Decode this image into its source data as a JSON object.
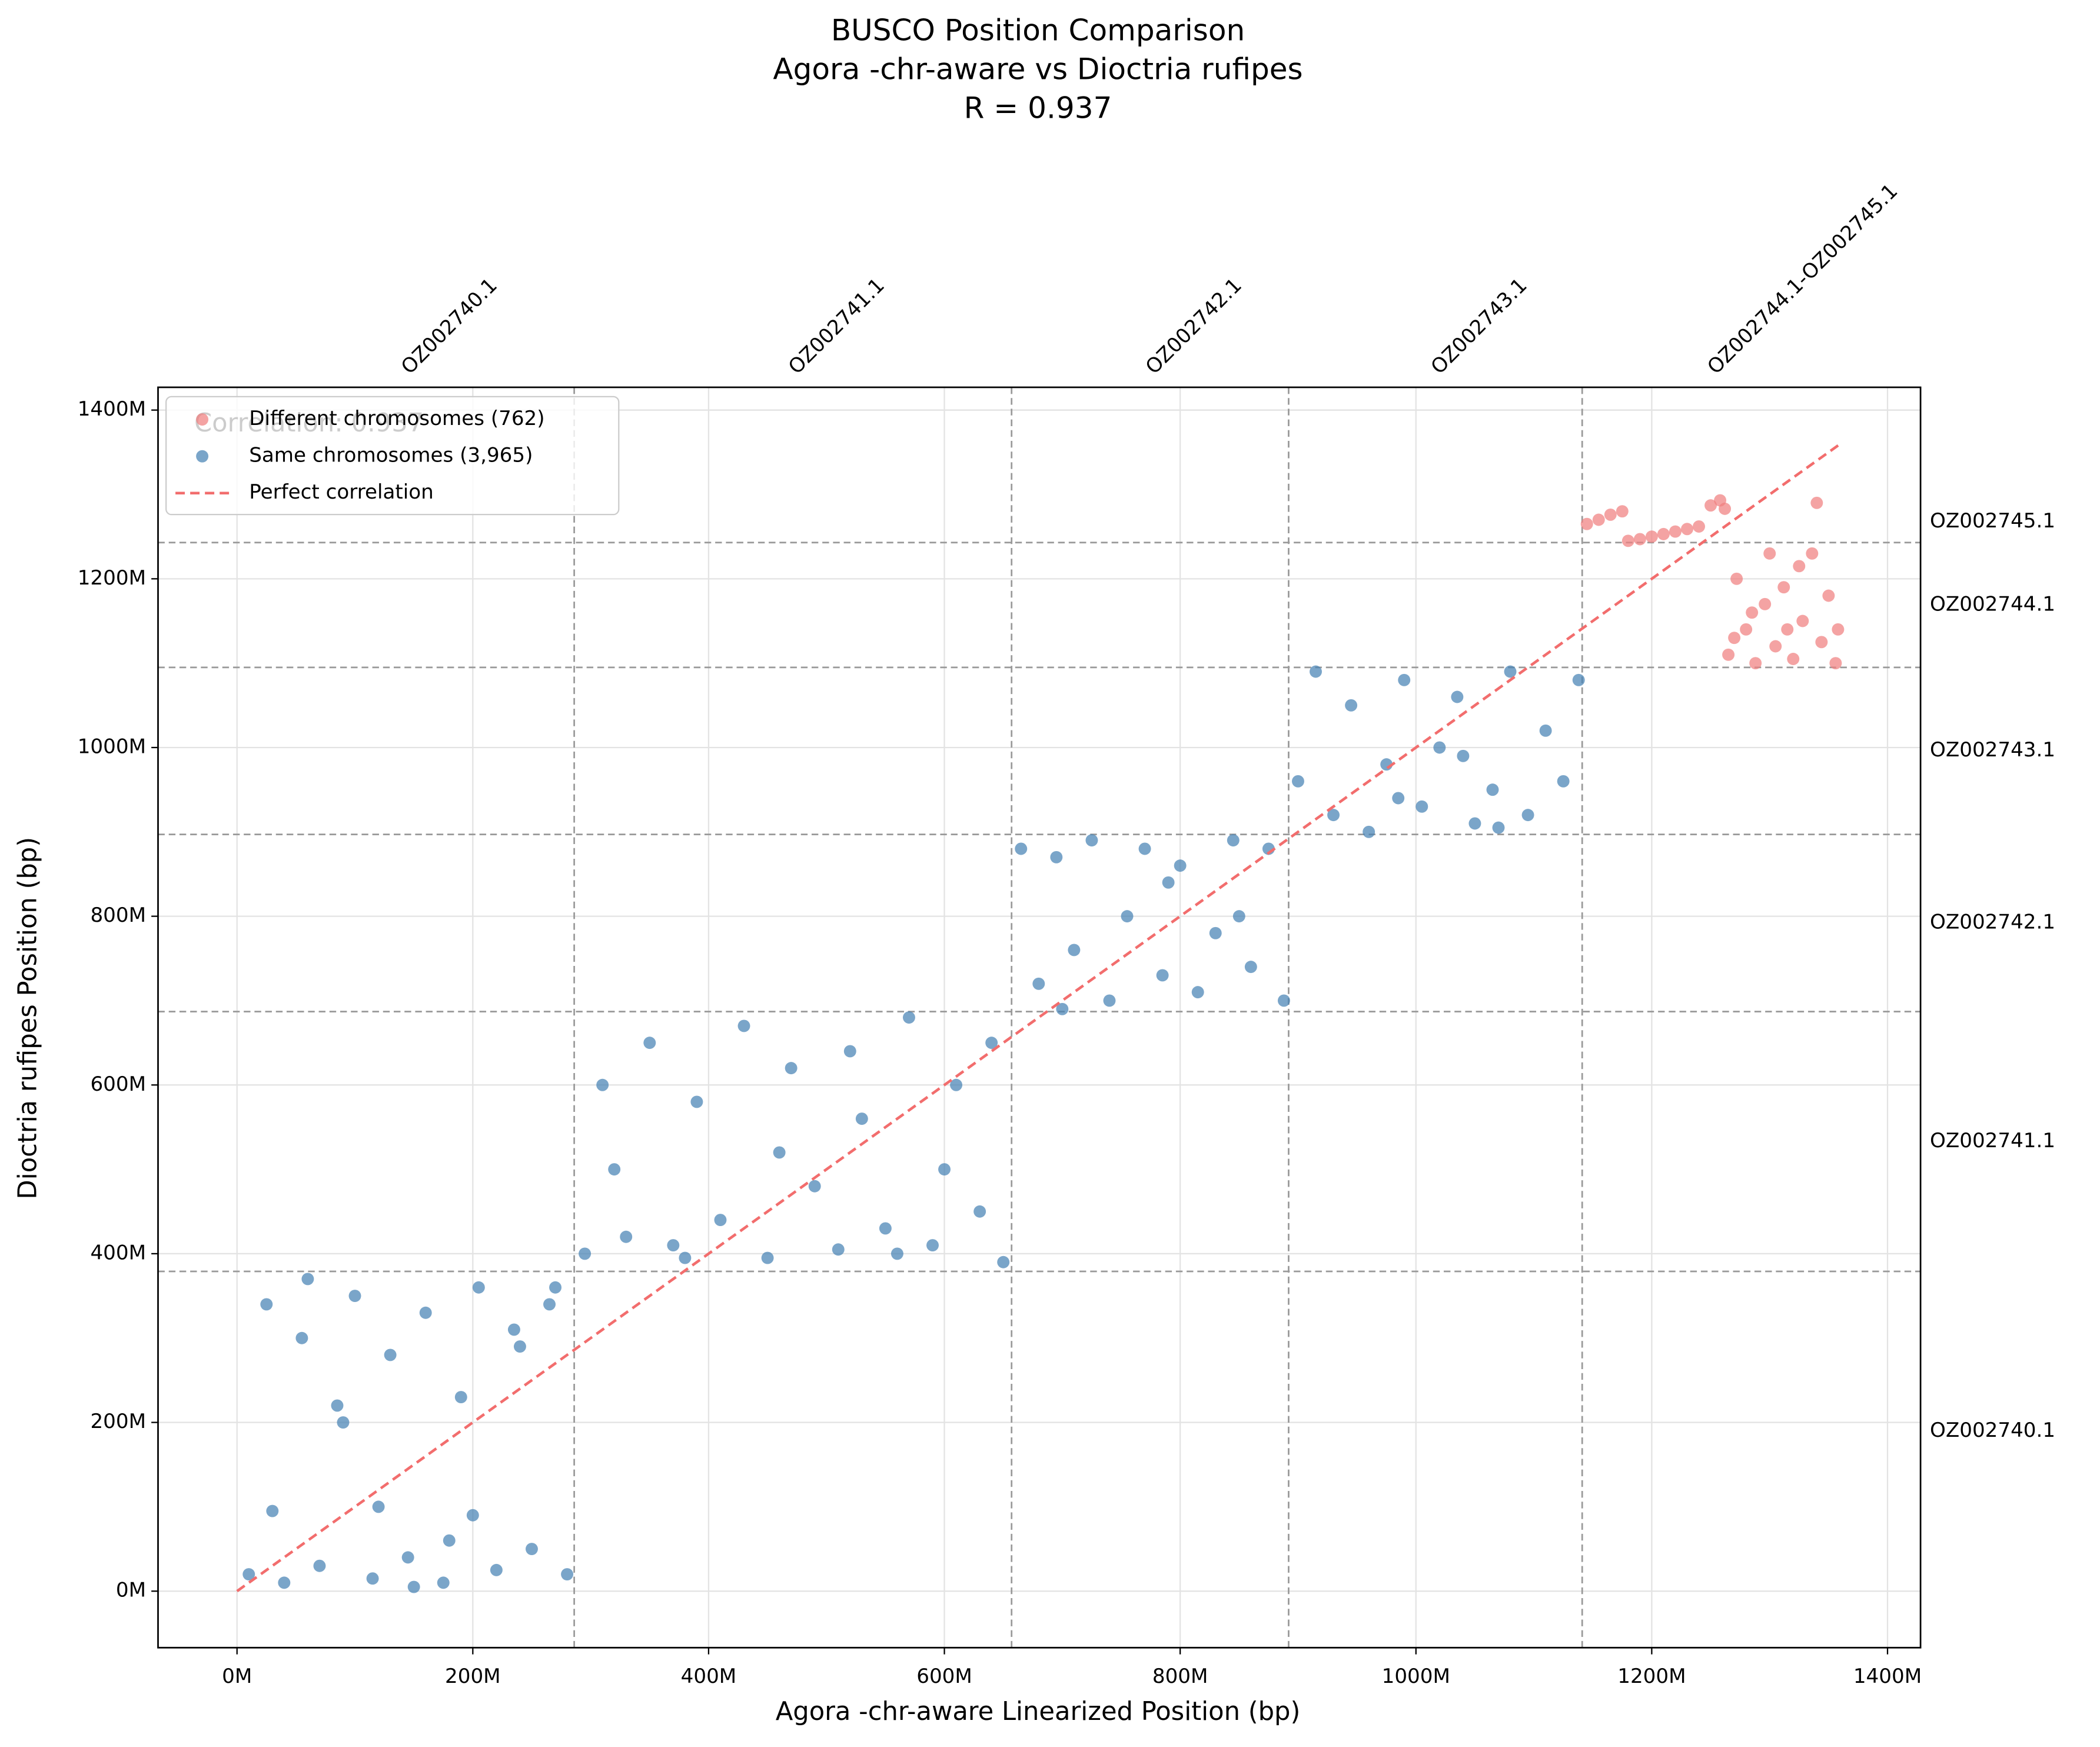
{
  "chart_data": {
    "type": "scatter",
    "title": [
      "BUSCO Position Comparison",
      "Agora -chr-aware  vs Dioctria rufipes",
      "R = 0.937"
    ],
    "x_label": "Agora -chr-aware  Linearized Position (bp)",
    "y_label": "Dioctria rufipes Position (bp)",
    "annotation": "Correlation: 0.937",
    "xlim": [
      -67000000.0,
      1428000000.0
    ],
    "ylim": [
      -67000000.0,
      1427000000.0
    ],
    "xticks": [
      {
        "value": 0,
        "label": "0M"
      },
      {
        "value": 200000000.0,
        "label": "200M"
      },
      {
        "value": 400000000.0,
        "label": "400M"
      },
      {
        "value": 600000000.0,
        "label": "600M"
      },
      {
        "value": 800000000.0,
        "label": "800M"
      },
      {
        "value": 1000000000.0,
        "label": "1000M"
      },
      {
        "value": 1200000000.0,
        "label": "1200M"
      },
      {
        "value": 1400000000.0,
        "label": "1400M"
      }
    ],
    "yticks": [
      {
        "value": 0,
        "label": "0M"
      },
      {
        "value": 200000000.0,
        "label": "200M"
      },
      {
        "value": 400000000.0,
        "label": "400M"
      },
      {
        "value": 600000000.0,
        "label": "600M"
      },
      {
        "value": 800000000.0,
        "label": "800M"
      },
      {
        "value": 1000000000.0,
        "label": "1000M"
      },
      {
        "value": 1200000000.0,
        "label": "1200M"
      },
      {
        "value": 1400000000.0,
        "label": "1400M"
      }
    ],
    "grid": true,
    "legend": "upper left",
    "x_chrom_edges": [
      0,
      286000000.0,
      657000000.0,
      892000000.0,
      1141000000.0,
      1361000000.0
    ],
    "x_chrom_labels": [
      "OZ002740.1",
      "OZ002741.1",
      "OZ002742.1",
      "OZ002743.1",
      "OZ002744.1-OZ002745.1"
    ],
    "y_chrom_edges": [
      0,
      379000000.0,
      687000000.0,
      897000000.0,
      1095000000.0,
      1243000000.0,
      1292000000.0
    ],
    "y_chrom_labels": [
      "OZ002740.1",
      "OZ002741.1",
      "OZ002742.1",
      "OZ002743.1",
      "OZ002744.1",
      "OZ002745.1"
    ],
    "series": [
      {
        "name": "Different chromosomes (762)",
        "color": "#f08080",
        "mode": "points",
        "x": [
          1145000000.0,
          1155000000.0,
          1165000000.0,
          1175000000.0,
          1180000000.0,
          1190000000.0,
          1200000000.0,
          1210000000.0,
          1220000000.0,
          1230000000.0,
          1240000000.0,
          1250000000.0,
          1258000000.0,
          1262000000.0,
          1265000000.0,
          1272000000.0,
          1280000000.0,
          1288000000.0,
          1296000000.0,
          1305000000.0,
          1312000000.0,
          1320000000.0,
          1328000000.0,
          1336000000.0,
          1344000000.0,
          1350000000.0,
          1356000000.0,
          1340000000.0,
          1300000000.0,
          1315000000.0,
          1285000000.0,
          1325000000.0,
          1358000000.0,
          1270000000.0
        ],
        "values": [
          1265000000.0,
          1270000000.0,
          1276000000.0,
          1280000000.0,
          1245000000.0,
          1247000000.0,
          1250000000.0,
          1253000000.0,
          1256000000.0,
          1259000000.0,
          1262000000.0,
          1287000000.0,
          1293000000.0,
          1283000000.0,
          1110000000.0,
          1200000000.0,
          1140000000.0,
          1100000000.0,
          1170000000.0,
          1120000000.0,
          1190000000.0,
          1105000000.0,
          1150000000.0,
          1230000000.0,
          1125000000.0,
          1180000000.0,
          1100000000.0,
          1290000000.0,
          1230000000.0,
          1140000000.0,
          1160000000.0,
          1215000000.0,
          1140000000.0,
          1130000000.0
        ]
      },
      {
        "name": "Same chromosomes (3,965)",
        "color": "#4682b4",
        "mode": "points",
        "x": [
          10000000.0,
          25000000.0,
          40000000.0,
          55000000.0,
          70000000.0,
          85000000.0,
          100000000.0,
          115000000.0,
          130000000.0,
          145000000.0,
          160000000.0,
          175000000.0,
          190000000.0,
          205000000.0,
          220000000.0,
          235000000.0,
          250000000.0,
          265000000.0,
          280000000.0,
          30000000.0,
          120000000.0,
          200000000.0,
          60000000.0,
          150000000.0,
          240000000.0,
          90000000.0,
          180000000.0,
          270000000.0,
          295000000.0,
          310000000.0,
          330000000.0,
          350000000.0,
          370000000.0,
          390000000.0,
          410000000.0,
          430000000.0,
          450000000.0,
          470000000.0,
          490000000.0,
          510000000.0,
          530000000.0,
          550000000.0,
          570000000.0,
          590000000.0,
          610000000.0,
          630000000.0,
          650000000.0,
          640000000.0,
          320000000.0,
          460000000.0,
          600000000.0,
          380000000.0,
          520000000.0,
          560000000.0,
          665000000.0,
          680000000.0,
          695000000.0,
          710000000.0,
          725000000.0,
          740000000.0,
          755000000.0,
          770000000.0,
          785000000.0,
          800000000.0,
          815000000.0,
          830000000.0,
          845000000.0,
          860000000.0,
          875000000.0,
          888000000.0,
          700000000.0,
          790000000.0,
          850000000.0,
          900000000.0,
          915000000.0,
          930000000.0,
          945000000.0,
          960000000.0,
          975000000.0,
          990000000.0,
          1005000000.0,
          1020000000.0,
          1035000000.0,
          1050000000.0,
          1065000000.0,
          1080000000.0,
          1095000000.0,
          1110000000.0,
          1125000000.0,
          1138000000.0,
          985000000.0,
          1070000000.0,
          1040000000.0
        ],
        "values": [
          20000000.0,
          340000000.0,
          10000000.0,
          300000000.0,
          30000000.0,
          220000000.0,
          350000000.0,
          15000000.0,
          280000000.0,
          40000000.0,
          330000000.0,
          10000000.0,
          230000000.0,
          360000000.0,
          25000000.0,
          310000000.0,
          50000000.0,
          340000000.0,
          20000000.0,
          95000000.0,
          100000000.0,
          90000000.0,
          370000000.0,
          5000000.0,
          290000000.0,
          200000000.0,
          60000000.0,
          360000000.0,
          400000000.0,
          600000000.0,
          420000000.0,
          650000000.0,
          410000000.0,
          580000000.0,
          440000000.0,
          670000000.0,
          395000000.0,
          620000000.0,
          480000000.0,
          405000000.0,
          560000000.0,
          430000000.0,
          680000000.0,
          410000000.0,
          600000000.0,
          450000000.0,
          390000000.0,
          650000000.0,
          500000000.0,
          520000000.0,
          500000000.0,
          395000000.0,
          640000000.0,
          400000000.0,
          880000000.0,
          720000000.0,
          870000000.0,
          760000000.0,
          890000000.0,
          700000000.0,
          800000000.0,
          880000000.0,
          730000000.0,
          860000000.0,
          710000000.0,
          780000000.0,
          890000000.0,
          740000000.0,
          880000000.0,
          700000000.0,
          690000000.0,
          840000000.0,
          800000000.0,
          960000000.0,
          1090000000.0,
          920000000.0,
          1050000000.0,
          900000000.0,
          980000000.0,
          1080000000.0,
          930000000.0,
          1000000000.0,
          1060000000.0,
          910000000.0,
          950000000.0,
          1090000000.0,
          920000000.0,
          1020000000.0,
          960000000.0,
          1080000000.0,
          940000000.0,
          905000000.0,
          990000000.0
        ]
      },
      {
        "name": "Perfect correlation",
        "color": "#f26d6d",
        "mode": "dashed-line",
        "x": [
          0,
          1361000000.0
        ],
        "values": [
          0,
          1361000000.0
        ]
      }
    ]
  }
}
